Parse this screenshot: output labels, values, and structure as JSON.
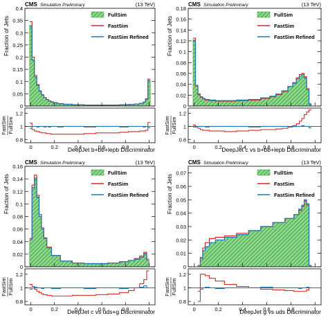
{
  "colors": {
    "fullsim_fill": "#7fd07f",
    "fullsim_hatch": "#2e9a2e",
    "fastsim": "#d62728",
    "refined": "#1f77b4"
  },
  "chart_data": [
    {
      "type": "line",
      "header_left": "CMS",
      "header_sub": "Simulation Preliminary",
      "header_right": "(13 TeV)",
      "ylabel": "Fraction of Jets",
      "ratio_ylabel": [
        "FastSim",
        "FullSim"
      ],
      "xlabel": "DeepJet b+bb+lepb Discriminator",
      "xlim": [
        -0.05,
        1.05
      ],
      "ylim": [
        0,
        0.4
      ],
      "yticks": [
        "0",
        "0.05",
        "0.1",
        "0.15",
        "0.2",
        "0.25",
        "0.3",
        "0.35",
        "0.4"
      ],
      "ratio_ylim": [
        0.75,
        1.28
      ],
      "ratio_yticks": [
        "0.8",
        "1",
        "1.2"
      ],
      "xticks": [
        "0",
        "0.2",
        "0.4",
        "0.6",
        "0.8",
        "1"
      ],
      "legend": [
        "FullSim",
        "FastSim",
        "FastSim Refined"
      ],
      "x": [
        0,
        0.02,
        0.04,
        0.06,
        0.08,
        0.1,
        0.12,
        0.14,
        0.16,
        0.18,
        0.2,
        0.25,
        0.3,
        0.4,
        0.5,
        0.6,
        0.7,
        0.8,
        0.85,
        0.9,
        0.94,
        0.96,
        0.98,
        1.0
      ],
      "series": [
        {
          "name": "FullSim",
          "values": [
            0.33,
            0.19,
            0.12,
            0.085,
            0.06,
            0.045,
            0.034,
            0.026,
            0.02,
            0.016,
            0.013,
            0.009,
            0.007,
            0.005,
            0.004,
            0.004,
            0.004,
            0.005,
            0.006,
            0.008,
            0.011,
            0.016,
            0.028,
            0.105
          ]
        },
        {
          "name": "FastSim",
          "values": [
            0.345,
            0.2,
            0.125,
            0.088,
            0.062,
            0.046,
            0.035,
            0.027,
            0.021,
            0.017,
            0.014,
            0.01,
            0.007,
            0.005,
            0.004,
            0.004,
            0.004,
            0.005,
            0.006,
            0.008,
            0.011,
            0.016,
            0.03,
            0.11
          ]
        },
        {
          "name": "FastSim Refined",
          "values": [
            0.325,
            0.188,
            0.119,
            0.084,
            0.06,
            0.045,
            0.034,
            0.026,
            0.02,
            0.016,
            0.013,
            0.009,
            0.007,
            0.005,
            0.004,
            0.004,
            0.004,
            0.005,
            0.006,
            0.008,
            0.011,
            0.016,
            0.028,
            0.104
          ]
        }
      ],
      "ratio": [
        {
          "name": "FastSim",
          "values": [
            1.05,
            0.95,
            0.93,
            0.92,
            0.91,
            0.9,
            0.9,
            0.89,
            0.89,
            0.88,
            0.88,
            0.88,
            0.88,
            0.88,
            0.89,
            0.9,
            0.9,
            0.91,
            0.92,
            0.92,
            0.93,
            0.93,
            0.94,
            1.06
          ]
        },
        {
          "name": "FastSim Refined",
          "values": [
            0.97,
            1.0,
            1.0,
            0.99,
            1.0,
            1.0,
            0.99,
            1.0,
            0.99,
            1.0,
            1.0,
            0.99,
            1.0,
            1.0,
            0.99,
            1.0,
            1.0,
            0.99,
            1.0,
            1.0,
            1.0,
            0.99,
            1.0,
            0.98
          ]
        }
      ]
    },
    {
      "type": "line",
      "header_left": "CMS",
      "header_sub": "Simulation Preliminary",
      "header_right": "(13 TeV)",
      "ylabel": "Fraction of Jets",
      "ratio_ylabel": [
        "FastSim",
        "FullSim"
      ],
      "xlabel": "DeepJet c vs b+bb+lepb Discriminator",
      "xlim": [
        -0.05,
        1.05
      ],
      "ylim": [
        0,
        0.18
      ],
      "yticks": [
        "0",
        "0.02",
        "0.04",
        "0.06",
        "0.08",
        "0.1",
        "0.12",
        "0.14",
        "0.16",
        "0.18"
      ],
      "ratio_ylim": [
        0.75,
        1.28
      ],
      "ratio_yticks": [
        "0.8",
        "1",
        "1.2"
      ],
      "xticks": [
        "0",
        "0.2",
        "0.4",
        "0.6",
        "0.8",
        "1"
      ],
      "legend": [
        "FullSim",
        "FastSim",
        "FastSim Refined"
      ],
      "x": [
        0,
        0.02,
        0.04,
        0.06,
        0.08,
        0.1,
        0.15,
        0.2,
        0.3,
        0.4,
        0.5,
        0.6,
        0.65,
        0.7,
        0.75,
        0.8,
        0.83,
        0.86,
        0.88,
        0.9,
        0.92,
        0.94,
        0.96
      ],
      "series": [
        {
          "name": "FullSim",
          "values": [
            0.122,
            0.038,
            0.022,
            0.017,
            0.014,
            0.012,
            0.011,
            0.01,
            0.01,
            0.011,
            0.012,
            0.015,
            0.018,
            0.022,
            0.028,
            0.036,
            0.042,
            0.05,
            0.055,
            0.058,
            0.052,
            0.03,
            0.003
          ]
        },
        {
          "name": "FastSim",
          "values": [
            0.125,
            0.037,
            0.021,
            0.016,
            0.013,
            0.011,
            0.01,
            0.009,
            0.009,
            0.01,
            0.011,
            0.014,
            0.017,
            0.021,
            0.027,
            0.036,
            0.043,
            0.052,
            0.058,
            0.06,
            0.054,
            0.032,
            0.004
          ]
        },
        {
          "name": "FastSim Refined",
          "values": [
            0.12,
            0.038,
            0.022,
            0.017,
            0.014,
            0.012,
            0.011,
            0.01,
            0.01,
            0.011,
            0.012,
            0.015,
            0.018,
            0.022,
            0.028,
            0.036,
            0.042,
            0.05,
            0.055,
            0.058,
            0.052,
            0.03,
            0.003
          ]
        }
      ],
      "ratio": [
        {
          "name": "FastSim",
          "values": [
            1.02,
            0.99,
            0.97,
            0.95,
            0.94,
            0.94,
            0.93,
            0.93,
            0.92,
            0.93,
            0.94,
            0.95,
            0.95,
            0.96,
            0.97,
            0.99,
            1.01,
            1.04,
            1.08,
            1.12,
            1.18,
            1.22,
            1.25
          ]
        },
        {
          "name": "FastSim Refined",
          "values": [
            0.99,
            1.0,
            1.0,
            1.0,
            1.0,
            0.99,
            1.0,
            1.0,
            1.0,
            1.0,
            0.99,
            1.0,
            1.0,
            1.0,
            1.0,
            0.99,
            1.0,
            1.0,
            1.0,
            1.01,
            1.0,
            1.0,
            0.98
          ]
        }
      ]
    },
    {
      "type": "line",
      "header_left": "CMS",
      "header_sub": "Simulation Preliminary",
      "header_right": "(13 TeV)",
      "ylabel": "Fraction of Jets",
      "ratio_ylabel": [
        "FastSim",
        "FullSim"
      ],
      "xlabel": "DeepJet c vs uds+g Discriminator",
      "xlim": [
        -0.05,
        1.05
      ],
      "ylim": [
        0,
        0.16
      ],
      "yticks": [
        "0",
        "0.02",
        "0.04",
        "0.06",
        "0.08",
        "0.1",
        "0.12",
        "0.14",
        "0.16"
      ],
      "ratio_ylim": [
        0.75,
        1.28
      ],
      "ratio_yticks": [
        "0.8",
        "1",
        "1.2"
      ],
      "xticks": [
        "0",
        "0.2",
        "0.4",
        "0.6",
        "0.8",
        "1"
      ],
      "legend": [
        "FullSim",
        "FastSim",
        "FastSim Refined"
      ],
      "x": [
        0,
        0.02,
        0.04,
        0.06,
        0.08,
        0.1,
        0.12,
        0.15,
        0.2,
        0.3,
        0.4,
        0.5,
        0.6,
        0.7,
        0.8,
        0.85,
        0.9,
        0.94,
        0.97,
        0.99
      ],
      "series": [
        {
          "name": "FullSim",
          "values": [
            0.043,
            0.125,
            0.14,
            0.11,
            0.08,
            0.06,
            0.045,
            0.03,
            0.018,
            0.009,
            0.006,
            0.005,
            0.005,
            0.006,
            0.008,
            0.01,
            0.012,
            0.015,
            0.02,
            0.01
          ]
        },
        {
          "name": "FastSim",
          "values": [
            0.045,
            0.13,
            0.146,
            0.114,
            0.083,
            0.062,
            0.046,
            0.031,
            0.018,
            0.009,
            0.006,
            0.005,
            0.005,
            0.006,
            0.008,
            0.01,
            0.013,
            0.017,
            0.023,
            0.012
          ]
        },
        {
          "name": "FastSim Refined",
          "values": [
            0.043,
            0.126,
            0.141,
            0.111,
            0.08,
            0.06,
            0.045,
            0.03,
            0.018,
            0.009,
            0.006,
            0.005,
            0.005,
            0.006,
            0.008,
            0.01,
            0.012,
            0.015,
            0.021,
            0.01
          ]
        }
      ],
      "ratio": [
        {
          "name": "FastSim",
          "values": [
            1.05,
            1.02,
            0.98,
            0.95,
            0.93,
            0.91,
            0.9,
            0.89,
            0.88,
            0.88,
            0.89,
            0.89,
            0.9,
            0.91,
            0.93,
            0.96,
            1.0,
            1.06,
            1.12,
            1.25
          ]
        },
        {
          "name": "FastSim Refined",
          "values": [
            0.98,
            1.0,
            1.01,
            1.0,
            1.0,
            0.99,
            1.0,
            1.0,
            0.99,
            1.0,
            1.0,
            0.99,
            1.0,
            1.0,
            0.99,
            1.0,
            1.0,
            1.01,
            1.03,
            1.0
          ]
        }
      ]
    },
    {
      "type": "line",
      "header_left": "CMS",
      "header_sub": "Simulation Preliminary",
      "header_right": "(13 TeV)",
      "ylabel": "Fraction of Jets",
      "ratio_ylabel": [
        "FastSim",
        "FullSim"
      ],
      "xlabel": "DeepJet g vs uds Discriminator",
      "xlim": [
        -0.05,
        1.05
      ],
      "ylim": [
        0,
        0.075
      ],
      "yticks": [
        "0",
        "0.01",
        "0.02",
        "0.03",
        "0.04",
        "0.05",
        "0.06",
        "0.07"
      ],
      "ratio_ylim": [
        0.75,
        1.28
      ],
      "ratio_yticks": [
        "0.8",
        "1",
        "1.2"
      ],
      "xticks": [
        "0",
        "0.2",
        "0.4",
        "0.6",
        "0.8",
        "1"
      ],
      "legend": [
        "FullSim",
        "FastSim",
        "FastSim Refined"
      ],
      "x": [
        0.04,
        0.06,
        0.08,
        0.1,
        0.15,
        0.2,
        0.3,
        0.4,
        0.5,
        0.6,
        0.7,
        0.8,
        0.85,
        0.88,
        0.9,
        0.92,
        0.94,
        0.96
      ],
      "series": [
        {
          "name": "FullSim",
          "values": [
            0.001,
            0.006,
            0.012,
            0.015,
            0.018,
            0.02,
            0.022,
            0.024,
            0.027,
            0.03,
            0.033,
            0.036,
            0.039,
            0.043,
            0.046,
            0.05,
            0.047,
            0.001
          ]
        },
        {
          "name": "FastSim",
          "values": [
            0.001,
            0.007,
            0.014,
            0.018,
            0.021,
            0.022,
            0.023,
            0.025,
            0.027,
            0.03,
            0.033,
            0.036,
            0.039,
            0.042,
            0.045,
            0.049,
            0.046,
            0.001
          ]
        },
        {
          "name": "FastSim Refined",
          "values": [
            0.001,
            0.006,
            0.012,
            0.015,
            0.018,
            0.02,
            0.022,
            0.024,
            0.027,
            0.03,
            0.033,
            0.036,
            0.039,
            0.043,
            0.046,
            0.05,
            0.047,
            0.001
          ]
        }
      ],
      "ratio": [
        {
          "name": "FastSim",
          "values": [
            0.95,
            1.2,
            1.2,
            1.18,
            1.14,
            1.1,
            1.05,
            1.02,
            1.0,
            0.98,
            0.97,
            0.96,
            0.95,
            0.95,
            0.95,
            0.95,
            0.97,
            1.0
          ]
        },
        {
          "name": "FastSim Refined",
          "values": [
            0.8,
            0.98,
            1.0,
            1.01,
            1.0,
            0.99,
            1.0,
            1.0,
            1.0,
            1.01,
            1.0,
            1.0,
            1.0,
            0.99,
            1.0,
            1.0,
            1.01,
            1.0
          ]
        }
      ]
    }
  ]
}
